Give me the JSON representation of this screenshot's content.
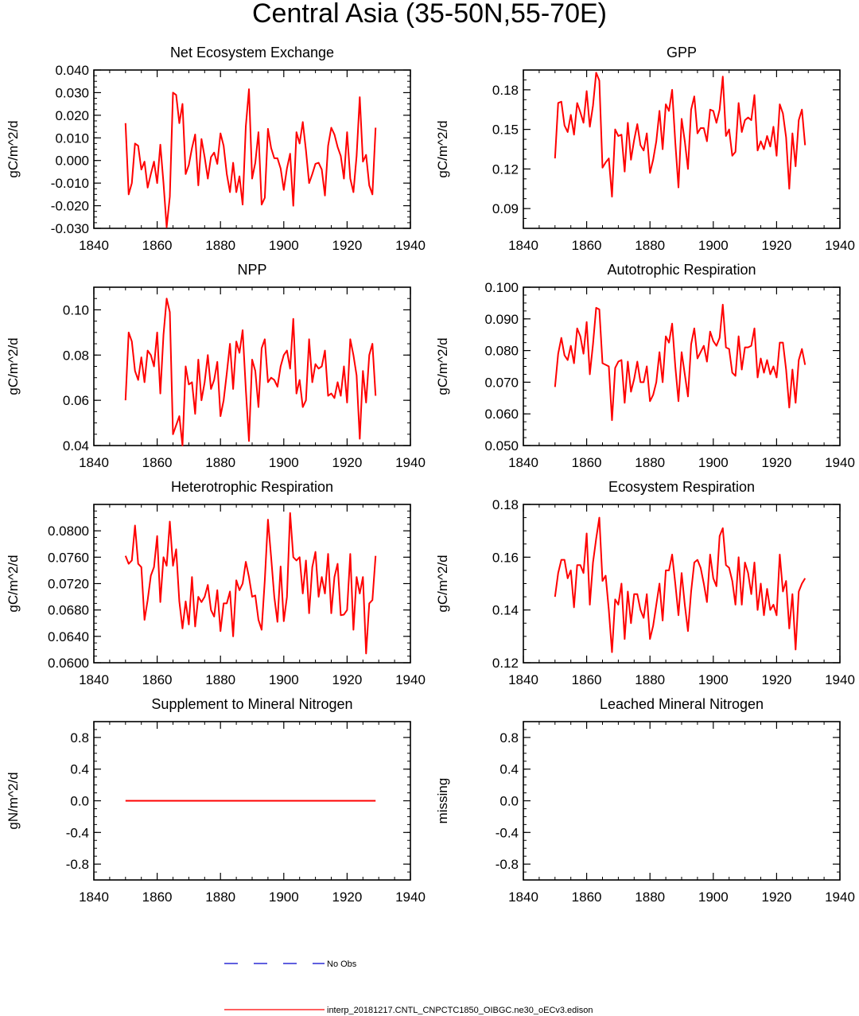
{
  "figure_title": "Central Asia (35-50N,55-70E)",
  "colors": {
    "model": "#ff0000",
    "obs": "#0000cc",
    "axis": "#000000"
  },
  "legend": {
    "obs_label": "No Obs",
    "model_label": "interp_20181217.CNTL_CNPCTC1850_OIBGC.ne30_oECv3.edison"
  },
  "chart_data": [
    {
      "type": "line",
      "title": "Net Ecosystem Exchange",
      "ylabel": "gC/m^2/d",
      "xlim": [
        1840,
        1940
      ],
      "ylim": [
        -0.03,
        0.04
      ],
      "xticks": [
        1840,
        1860,
        1880,
        1900,
        1920,
        1940
      ],
      "xtick_labels": [
        "1840",
        "1860",
        "1880",
        "1900",
        "1920",
        "1940"
      ],
      "yticks": [
        -0.03,
        -0.02,
        -0.01,
        0.0,
        0.01,
        0.02,
        0.03,
        0.04
      ],
      "ytick_labels": [
        "-0.030",
        "-0.020",
        "-0.010",
        "0.000",
        "0.010",
        "0.020",
        "0.030",
        "0.040"
      ],
      "x_start": 1850,
      "values": [
        0.0165,
        -0.015,
        -0.01,
        0.0075,
        0.0065,
        -0.004,
        -0.0005,
        -0.012,
        -0.006,
        -0.0005,
        -0.01,
        0.007,
        -0.01,
        -0.0295,
        -0.016,
        0.03,
        0.029,
        0.0165,
        0.025,
        -0.006,
        -0.002,
        0.0055,
        0.0115,
        -0.011,
        0.0095,
        0.0015,
        -0.008,
        0.0015,
        0.0035,
        -0.0015,
        0.012,
        0.0065,
        -0.006,
        -0.014,
        -0.001,
        -0.014,
        -0.007,
        -0.0195,
        0.015,
        0.0315,
        -0.008,
        -0.001,
        0.0125,
        -0.0195,
        -0.0165,
        0.014,
        0.0055,
        0.001,
        0.001,
        -0.0035,
        -0.013,
        -0.0035,
        0.003,
        -0.02,
        0.0125,
        0.0075,
        0.017,
        0.0045,
        -0.01,
        -0.006,
        -0.0015,
        -0.001,
        -0.004,
        -0.0155,
        0.0065,
        0.0145,
        0.0115,
        0.006,
        0.002,
        -0.008,
        0.0125,
        -0.008,
        -0.014,
        0.002,
        0.028,
        -0.0005,
        0.0025,
        -0.011,
        -0.015,
        0.0145
      ]
    },
    {
      "type": "line",
      "title": "GPP",
      "ylabel": "gC/m^2/d",
      "xlim": [
        1840,
        1940
      ],
      "ylim": [
        0.075,
        0.195
      ],
      "xticks": [
        1840,
        1860,
        1880,
        1900,
        1920,
        1940
      ],
      "xtick_labels": [
        "1840",
        "1860",
        "1880",
        "1900",
        "1920",
        "1940"
      ],
      "yticks": [
        0.09,
        0.12,
        0.15,
        0.18
      ],
      "ytick_labels": [
        "0.09",
        "0.12",
        "0.15",
        "0.18"
      ],
      "x_start": 1850,
      "values": [
        0.128,
        0.17,
        0.171,
        0.153,
        0.148,
        0.161,
        0.146,
        0.17,
        0.163,
        0.155,
        0.179,
        0.152,
        0.168,
        0.193,
        0.187,
        0.121,
        0.125,
        0.128,
        0.099,
        0.15,
        0.145,
        0.146,
        0.118,
        0.155,
        0.127,
        0.142,
        0.154,
        0.138,
        0.134,
        0.147,
        0.117,
        0.127,
        0.141,
        0.164,
        0.135,
        0.169,
        0.164,
        0.18,
        0.14,
        0.106,
        0.158,
        0.141,
        0.12,
        0.165,
        0.175,
        0.147,
        0.151,
        0.151,
        0.141,
        0.165,
        0.164,
        0.155,
        0.165,
        0.19,
        0.145,
        0.15,
        0.13,
        0.133,
        0.17,
        0.148,
        0.157,
        0.159,
        0.157,
        0.176,
        0.134,
        0.141,
        0.135,
        0.145,
        0.137,
        0.152,
        0.13,
        0.169,
        0.162,
        0.144,
        0.105,
        0.147,
        0.122,
        0.157,
        0.165,
        0.138
      ]
    },
    {
      "type": "line",
      "title": "NPP",
      "ylabel": "gC/m^2/d",
      "xlim": [
        1840,
        1940
      ],
      "ylim": [
        0.04,
        0.11
      ],
      "xticks": [
        1840,
        1860,
        1880,
        1900,
        1920,
        1940
      ],
      "xtick_labels": [
        "1840",
        "1860",
        "1880",
        "1900",
        "1920",
        "1940"
      ],
      "yticks": [
        0.04,
        0.06,
        0.08,
        0.1
      ],
      "ytick_labels": [
        "0.04",
        "0.06",
        "0.08",
        "0.10"
      ],
      "x_start": 1850,
      "values": [
        0.06,
        0.09,
        0.086,
        0.073,
        0.069,
        0.079,
        0.068,
        0.082,
        0.08,
        0.075,
        0.09,
        0.063,
        0.089,
        0.105,
        0.099,
        0.045,
        0.049,
        0.053,
        0.04,
        0.075,
        0.067,
        0.068,
        0.054,
        0.078,
        0.06,
        0.068,
        0.08,
        0.065,
        0.069,
        0.077,
        0.053,
        0.06,
        0.072,
        0.085,
        0.065,
        0.086,
        0.081,
        0.091,
        0.065,
        0.042,
        0.078,
        0.073,
        0.057,
        0.083,
        0.087,
        0.068,
        0.07,
        0.069,
        0.066,
        0.075,
        0.08,
        0.082,
        0.074,
        0.096,
        0.063,
        0.069,
        0.057,
        0.06,
        0.087,
        0.068,
        0.076,
        0.074,
        0.075,
        0.082,
        0.062,
        0.063,
        0.061,
        0.068,
        0.062,
        0.075,
        0.059,
        0.087,
        0.08,
        0.071,
        0.043,
        0.073,
        0.059,
        0.08,
        0.085,
        0.062
      ]
    },
    {
      "type": "line",
      "title": "Autotrophic Respiration",
      "ylabel": "gC/m^2/d",
      "xlim": [
        1840,
        1940
      ],
      "ylim": [
        0.05,
        0.1
      ],
      "xticks": [
        1840,
        1860,
        1880,
        1900,
        1920,
        1940
      ],
      "xtick_labels": [
        "1840",
        "1860",
        "1880",
        "1900",
        "1920",
        "1940"
      ],
      "yticks": [
        0.05,
        0.06,
        0.07,
        0.08,
        0.09,
        0.1
      ],
      "ytick_labels": [
        "0.050",
        "0.060",
        "0.070",
        "0.080",
        "0.090",
        "0.100"
      ],
      "x_start": 1850,
      "values": [
        0.0685,
        0.079,
        0.084,
        0.0785,
        0.077,
        0.0815,
        0.076,
        0.087,
        0.0845,
        0.079,
        0.089,
        0.0725,
        0.082,
        0.0935,
        0.093,
        0.076,
        0.0755,
        0.075,
        0.058,
        0.0745,
        0.0765,
        0.077,
        0.0635,
        0.0765,
        0.067,
        0.071,
        0.0765,
        0.07,
        0.07,
        0.075,
        0.064,
        0.066,
        0.07,
        0.0795,
        0.07,
        0.0845,
        0.0825,
        0.0885,
        0.075,
        0.064,
        0.0795,
        0.0725,
        0.0655,
        0.082,
        0.087,
        0.0775,
        0.0795,
        0.0815,
        0.0765,
        0.086,
        0.083,
        0.0815,
        0.084,
        0.0945,
        0.081,
        0.0805,
        0.073,
        0.072,
        0.0845,
        0.074,
        0.081,
        0.081,
        0.0815,
        0.087,
        0.0715,
        0.0775,
        0.073,
        0.077,
        0.0725,
        0.075,
        0.0715,
        0.0825,
        0.0825,
        0.074,
        0.062,
        0.074,
        0.0635,
        0.077,
        0.0805,
        0.0755
      ]
    },
    {
      "type": "line",
      "title": "Heterotrophic Respiration",
      "ylabel": "gC/m^2/d",
      "xlim": [
        1840,
        1940
      ],
      "ylim": [
        0.06,
        0.084
      ],
      "xticks": [
        1840,
        1860,
        1880,
        1900,
        1920,
        1940
      ],
      "xtick_labels": [
        "1840",
        "1860",
        "1880",
        "1900",
        "1920",
        "1940"
      ],
      "yticks": [
        0.06,
        0.064,
        0.068,
        0.072,
        0.076,
        0.08
      ],
      "ytick_labels": [
        "0.0600",
        "0.0640",
        "0.0680",
        "0.0720",
        "0.0760",
        "0.0800"
      ],
      "x_start": 1850,
      "values": [
        0.0762,
        0.075,
        0.0755,
        0.0808,
        0.075,
        0.0745,
        0.0665,
        0.0695,
        0.0732,
        0.0745,
        0.0792,
        0.0692,
        0.076,
        0.0747,
        0.0814,
        0.0747,
        0.0772,
        0.0693,
        0.0652,
        0.0693,
        0.0658,
        0.073,
        0.0655,
        0.07,
        0.0692,
        0.07,
        0.0718,
        0.068,
        0.067,
        0.071,
        0.0648,
        0.069,
        0.069,
        0.0708,
        0.064,
        0.0725,
        0.071,
        0.072,
        0.0753,
        0.073,
        0.07,
        0.0702,
        0.0665,
        0.065,
        0.0725,
        0.0817,
        0.076,
        0.07,
        0.0662,
        0.0746,
        0.0663,
        0.07,
        0.0827,
        0.076,
        0.0755,
        0.076,
        0.0705,
        0.0755,
        0.0675,
        0.0745,
        0.0768,
        0.07,
        0.073,
        0.0705,
        0.0765,
        0.0675,
        0.073,
        0.075,
        0.0672,
        0.0673,
        0.068,
        0.0765,
        0.065,
        0.073,
        0.0705,
        0.073,
        0.0614,
        0.069,
        0.0695,
        0.0762
      ]
    },
    {
      "type": "line",
      "title": "Ecosystem Respiration",
      "ylabel": "gC/m^2/d",
      "xlim": [
        1840,
        1940
      ],
      "ylim": [
        0.12,
        0.18
      ],
      "xticks": [
        1840,
        1860,
        1880,
        1900,
        1920,
        1940
      ],
      "xtick_labels": [
        "1840",
        "1860",
        "1880",
        "1900",
        "1920",
        "1940"
      ],
      "yticks": [
        0.12,
        0.14,
        0.16,
        0.18
      ],
      "ytick_labels": [
        "0.12",
        "0.14",
        "0.16",
        "0.18"
      ],
      "x_start": 1850,
      "values": [
        0.145,
        0.154,
        0.159,
        0.159,
        0.152,
        0.155,
        0.141,
        0.157,
        0.157,
        0.154,
        0.169,
        0.142,
        0.158,
        0.167,
        0.175,
        0.151,
        0.153,
        0.14,
        0.124,
        0.144,
        0.142,
        0.15,
        0.129,
        0.147,
        0.135,
        0.146,
        0.146,
        0.14,
        0.137,
        0.146,
        0.129,
        0.134,
        0.142,
        0.15,
        0.136,
        0.155,
        0.155,
        0.161,
        0.15,
        0.138,
        0.154,
        0.142,
        0.132,
        0.147,
        0.158,
        0.159,
        0.156,
        0.15,
        0.143,
        0.161,
        0.152,
        0.149,
        0.168,
        0.171,
        0.157,
        0.156,
        0.151,
        0.142,
        0.16,
        0.142,
        0.158,
        0.154,
        0.146,
        0.158,
        0.14,
        0.15,
        0.138,
        0.148,
        0.14,
        0.142,
        0.138,
        0.161,
        0.147,
        0.151,
        0.133,
        0.146,
        0.125,
        0.147,
        0.15,
        0.152
      ]
    },
    {
      "type": "line",
      "title": "Supplement to Mineral Nitrogen",
      "ylabel": "gN/m^2/d",
      "xlim": [
        1840,
        1940
      ],
      "ylim": [
        -1.0,
        1.0
      ],
      "xticks": [
        1840,
        1860,
        1880,
        1900,
        1920,
        1940
      ],
      "xtick_labels": [
        "1840",
        "1860",
        "1880",
        "1900",
        "1920",
        "1940"
      ],
      "yticks": [
        -0.8,
        -0.4,
        0.0,
        0.4,
        0.8
      ],
      "ytick_labels": [
        "-0.8",
        "-0.4",
        "0.0",
        "0.4",
        "0.8"
      ],
      "x_start": 1850,
      "values": [
        0,
        0,
        0,
        0,
        0,
        0,
        0,
        0,
        0,
        0,
        0,
        0,
        0,
        0,
        0,
        0,
        0,
        0,
        0,
        0,
        0,
        0,
        0,
        0,
        0,
        0,
        0,
        0,
        0,
        0,
        0,
        0,
        0,
        0,
        0,
        0,
        0,
        0,
        0,
        0,
        0,
        0,
        0,
        0,
        0,
        0,
        0,
        0,
        0,
        0,
        0,
        0,
        0,
        0,
        0,
        0,
        0,
        0,
        0,
        0,
        0,
        0,
        0,
        0,
        0,
        0,
        0,
        0,
        0,
        0,
        0,
        0,
        0,
        0,
        0,
        0,
        0,
        0,
        0,
        0
      ]
    },
    {
      "type": "line",
      "title": "Leached Mineral Nitrogen",
      "ylabel": "missing",
      "xlim": [
        1840,
        1940
      ],
      "ylim": [
        -1.0,
        1.0
      ],
      "xticks": [
        1840,
        1860,
        1880,
        1900,
        1920,
        1940
      ],
      "xtick_labels": [
        "1840",
        "1860",
        "1880",
        "1900",
        "1920",
        "1940"
      ],
      "yticks": [
        -0.8,
        -0.4,
        0.0,
        0.4,
        0.8
      ],
      "ytick_labels": [
        "-0.8",
        "-0.4",
        "0.0",
        "0.4",
        "0.8"
      ],
      "x_start": 1850,
      "values": []
    }
  ]
}
